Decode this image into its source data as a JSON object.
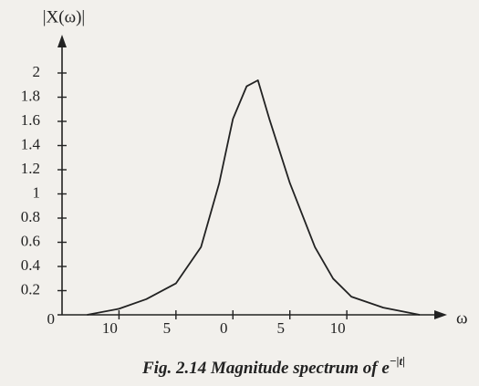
{
  "chart_data": {
    "type": "line",
    "y_label": "|X(ω)|",
    "x_label": "ω",
    "caption": "Fig. 2.14 Magnitude spectrum of e",
    "caption_exponent": "−|t|",
    "x": [
      -12.8,
      -10,
      -7.6,
      -5,
      -2.8,
      -1.2,
      0,
      1.2,
      2.2,
      3.2,
      5,
      7.2,
      8.8,
      10.4,
      13.2,
      16.4
    ],
    "values": [
      0,
      0.05,
      0.13,
      0.26,
      0.56,
      1.09,
      1.62,
      1.89,
      1.94,
      1.62,
      1.09,
      0.56,
      0.3,
      0.15,
      0.06,
      0
    ],
    "color": "#222222",
    "xlim": [
      -15,
      18
    ],
    "ylim": [
      0,
      2.1
    ],
    "xticks": [
      {
        "value": -10,
        "label": "10"
      },
      {
        "value": -5,
        "label": "5"
      },
      0,
      5,
      10
    ],
    "yticks": [
      0,
      0.2,
      0.4,
      0.6,
      0.8,
      1,
      1.2,
      1.4,
      1.6,
      1.8,
      2
    ]
  }
}
